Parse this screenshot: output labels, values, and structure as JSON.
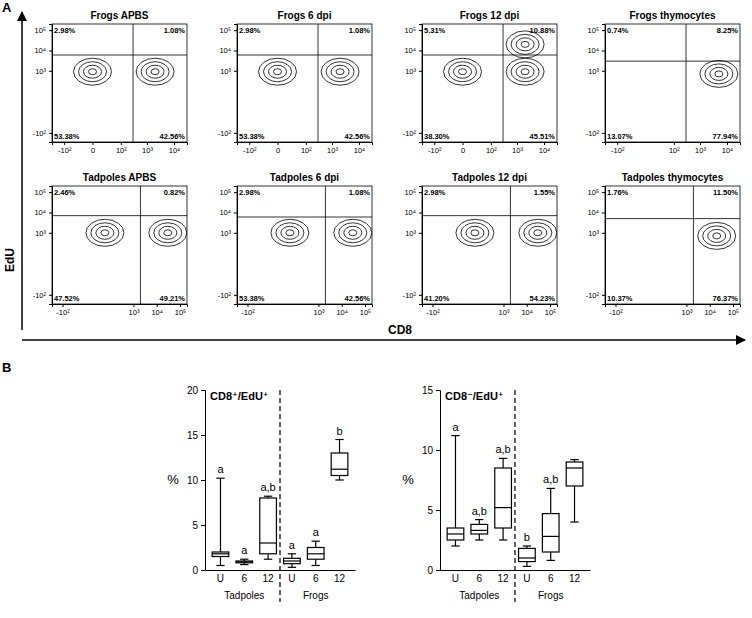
{
  "figure": {
    "x_label": "CD8",
    "y_label": "EdU",
    "panel_labels": [
      "A",
      "B"
    ]
  },
  "chart_data": [
    {
      "type": "flow",
      "title": "Frogs APBS",
      "log": true,
      "xlim": [
        -300,
        30000
      ],
      "ylim": [
        -300,
        200000
      ],
      "xticks": [
        {
          "value": -100,
          "label": "-10²"
        },
        0,
        {
          "value": 100,
          "label": "10²"
        },
        {
          "value": 1000,
          "label": "10³"
        },
        {
          "value": 10000,
          "label": "10⁴"
        }
      ],
      "yticks": [
        {
          "value": -100,
          "label": "-10²"
        },
        {
          "value": 1000,
          "label": "10³"
        },
        {
          "value": 10000,
          "label": "10⁴"
        },
        {
          "value": 100000,
          "label": "10⁵"
        }
      ],
      "gate": {
        "x": 300,
        "y": 6000
      },
      "quadrants": {
        "values": [
          2.98,
          1.08,
          53.38,
          42.56
        ],
        "value_labels": [
          "2.98%",
          "1.08%",
          "53.38%",
          "42.56%"
        ]
      },
      "clusters": [
        {
          "x": 0,
          "y": 900
        },
        {
          "x": 2000,
          "y": 900
        }
      ]
    },
    {
      "type": "flow",
      "title": "Frogs 6 dpi",
      "log": true,
      "xlim": [
        -300,
        30000
      ],
      "ylim": [
        -300,
        200000
      ],
      "xticks": [
        {
          "value": -100,
          "label": "-10²"
        },
        0,
        {
          "value": 100,
          "label": "10²"
        },
        {
          "value": 1000,
          "label": "10³"
        },
        {
          "value": 10000,
          "label": "10⁴"
        }
      ],
      "yticks": [
        {
          "value": -100,
          "label": "-10²"
        },
        {
          "value": 1000,
          "label": "10³"
        },
        {
          "value": 10000,
          "label": "10⁴"
        },
        {
          "value": 100000,
          "label": "10⁵"
        }
      ],
      "gate": {
        "x": 300,
        "y": 6000
      },
      "quadrants": {
        "values": [
          2.98,
          1.08,
          53.38,
          42.56
        ],
        "value_labels": [
          "2.98%",
          "1.08%",
          "53.38%",
          "42.56%"
        ]
      },
      "clusters": [
        {
          "x": 0,
          "y": 900
        },
        {
          "x": 2000,
          "y": 900
        }
      ]
    },
    {
      "type": "flow",
      "title": "Frogs 12 dpi",
      "log": true,
      "xlim": [
        -300,
        30000
      ],
      "ylim": [
        -300,
        200000
      ],
      "xticks": [
        {
          "value": -100,
          "label": "-10²"
        },
        0,
        {
          "value": 100,
          "label": "10²"
        },
        {
          "value": 1000,
          "label": "10³"
        },
        {
          "value": 10000,
          "label": "10⁴"
        }
      ],
      "yticks": [
        {
          "value": -100,
          "label": "-10²"
        },
        {
          "value": 1000,
          "label": "10³"
        },
        {
          "value": 10000,
          "label": "10⁴"
        },
        {
          "value": 100000,
          "label": "10⁵"
        }
      ],
      "gate": {
        "x": 300,
        "y": 6000
      },
      "quadrants": {
        "values": [
          5.31,
          10.88,
          38.3,
          45.51
        ],
        "value_labels": [
          "5.31%",
          "10.88%",
          "38.30%",
          "45.51%"
        ]
      },
      "clusters": [
        {
          "x": 0,
          "y": 900
        },
        {
          "x": 2000,
          "y": 900
        },
        {
          "x": 2000,
          "y": 20000
        }
      ]
    },
    {
      "type": "flow",
      "title": "Frogs thymocytes",
      "log": true,
      "xlim": [
        -300,
        30000
      ],
      "ylim": [
        -300,
        200000
      ],
      "xticks": [
        {
          "value": -100,
          "label": "-10²"
        },
        {
          "value": 100,
          "label": "10²"
        },
        {
          "value": 1000,
          "label": "10³"
        },
        {
          "value": 10000,
          "label": "10⁴"
        }
      ],
      "yticks": [
        {
          "value": -100,
          "label": "-10²"
        },
        {
          "value": 1000,
          "label": "10³"
        },
        {
          "value": 10000,
          "label": "10⁴"
        },
        {
          "value": 100000,
          "label": "10⁵"
        }
      ],
      "gate": {
        "x": 300,
        "y": 3000
      },
      "quadrants": {
        "values": [
          0.74,
          8.25,
          13.07,
          77.94
        ],
        "value_labels": [
          "0.74%",
          "8.25%",
          "13.07%",
          "77.94%"
        ]
      },
      "clusters": [
        {
          "x": 5000,
          "y": 700
        }
      ]
    },
    {
      "type": "flow",
      "title": "Tadpoles APBS",
      "log": true,
      "xlim": [
        -300,
        200000
      ],
      "ylim": [
        -300,
        200000
      ],
      "xticks": [
        {
          "value": -100,
          "label": "-10²"
        },
        {
          "value": 1000,
          "label": "10³"
        },
        {
          "value": 10000,
          "label": "10⁴"
        },
        {
          "value": 100000,
          "label": "10⁵"
        }
      ],
      "yticks": [
        {
          "value": -100,
          "label": "-10²"
        },
        {
          "value": 1000,
          "label": "10³"
        },
        {
          "value": 10000,
          "label": "10⁴"
        },
        {
          "value": 100000,
          "label": "10⁵"
        }
      ],
      "gate": {
        "x": 2000,
        "y": 7000
      },
      "quadrants": {
        "values": [
          2.46,
          0.82,
          47.52,
          49.21
        ],
        "value_labels": [
          "2.46%",
          "0.82%",
          "47.52%",
          "49.21%"
        ]
      },
      "clusters": [
        {
          "x": 50,
          "y": 1000
        },
        {
          "x": 30000,
          "y": 1000
        }
      ]
    },
    {
      "type": "flow",
      "title": "Tadpoles 6 dpi",
      "log": true,
      "xlim": [
        -300,
        200000
      ],
      "ylim": [
        -300,
        200000
      ],
      "xticks": [
        {
          "value": -100,
          "label": "-10²"
        },
        {
          "value": 1000,
          "label": "10³"
        },
        {
          "value": 10000,
          "label": "10⁴"
        },
        {
          "value": 100000,
          "label": "10⁵"
        }
      ],
      "yticks": [
        {
          "value": -100,
          "label": "-10²"
        },
        {
          "value": 1000,
          "label": "10³"
        },
        {
          "value": 10000,
          "label": "10⁴"
        },
        {
          "value": 100000,
          "label": "10⁵"
        }
      ],
      "gate": {
        "x": 2000,
        "y": 6000
      },
      "quadrants": {
        "values": [
          2.98,
          1.08,
          53.38,
          42.56
        ],
        "value_labels": [
          "2.98%",
          "1.08%",
          "53.38%",
          "42.56%"
        ]
      },
      "clusters": [
        {
          "x": 50,
          "y": 1000
        },
        {
          "x": 30000,
          "y": 1000
        }
      ]
    },
    {
      "type": "flow",
      "title": "Tadpoles 12 dpi",
      "log": true,
      "xlim": [
        -300,
        200000
      ],
      "ylim": [
        -300,
        200000
      ],
      "xticks": [
        {
          "value": -100,
          "label": "-10²"
        },
        {
          "value": 1000,
          "label": "10³"
        },
        {
          "value": 10000,
          "label": "10⁴"
        },
        {
          "value": 100000,
          "label": "10⁵"
        }
      ],
      "yticks": [
        {
          "value": -100,
          "label": "-10²"
        },
        {
          "value": 1000,
          "label": "10³"
        },
        {
          "value": 10000,
          "label": "10⁴"
        },
        {
          "value": 100000,
          "label": "10⁵"
        }
      ],
      "gate": {
        "x": 2000,
        "y": 7000
      },
      "quadrants": {
        "values": [
          2.98,
          1.55,
          41.2,
          54.23
        ],
        "value_labels": [
          "2.98%",
          "1.55%",
          "41.20%",
          "54.23%"
        ]
      },
      "clusters": [
        {
          "x": 50,
          "y": 1000
        },
        {
          "x": 30000,
          "y": 1000
        }
      ]
    },
    {
      "type": "flow",
      "title": "Tadpoles thymocytes",
      "log": true,
      "xlim": [
        -300,
        200000
      ],
      "ylim": [
        -300,
        200000
      ],
      "xticks": [
        {
          "value": -100,
          "label": "-10²"
        },
        {
          "value": 1000,
          "label": "10³"
        },
        {
          "value": 10000,
          "label": "10⁴"
        },
        {
          "value": 100000,
          "label": "10⁵"
        }
      ],
      "yticks": [
        {
          "value": -100,
          "label": "-10²"
        },
        {
          "value": 1000,
          "label": "10³"
        },
        {
          "value": 10000,
          "label": "10⁴"
        },
        {
          "value": 100000,
          "label": "10⁵"
        }
      ],
      "gate": {
        "x": 2000,
        "y": 5000
      },
      "quadrants": {
        "values": [
          1.76,
          11.5,
          10.37,
          76.37
        ],
        "value_labels": [
          "1.76%",
          "11.50%",
          "10.37%",
          "76.37%"
        ]
      },
      "clusters": [
        {
          "x": 20000,
          "y": 700
        }
      ]
    },
    {
      "type": "box",
      "title": "CD8⁺/EdU⁺",
      "y_label": "%",
      "categories": [
        "U",
        "6",
        "12",
        "U",
        "6",
        "12"
      ],
      "groups": [
        "Tadpoles",
        "Frogs"
      ],
      "ylim": [
        0,
        20
      ],
      "yticks": [
        0,
        5,
        10,
        15,
        20
      ],
      "min": [
        0.5,
        0.6,
        1.2,
        0.3,
        0.5,
        10.0
      ],
      "q1": [
        1.5,
        0.8,
        1.8,
        0.7,
        1.2,
        10.5
      ],
      "median": [
        1.8,
        0.9,
        3.0,
        1.0,
        1.8,
        11.2
      ],
      "q3": [
        2.0,
        1.0,
        8.0,
        1.3,
        2.5,
        13.0
      ],
      "max": [
        10.2,
        1.2,
        8.2,
        1.8,
        3.2,
        14.5
      ],
      "annotations": [
        "a",
        "a",
        "a,b",
        "a",
        "a",
        "b"
      ]
    },
    {
      "type": "box",
      "title": "CD8⁻/EdU⁺",
      "y_label": "%",
      "categories": [
        "U",
        "6",
        "12",
        "U",
        "6",
        "12"
      ],
      "groups": [
        "Tadpoles",
        "Frogs"
      ],
      "ylim": [
        0,
        15
      ],
      "yticks": [
        0,
        5,
        10,
        15
      ],
      "min": [
        2.0,
        2.5,
        2.5,
        0.3,
        0.8,
        4.0
      ],
      "q1": [
        2.5,
        3.0,
        3.5,
        0.7,
        1.5,
        7.0
      ],
      "median": [
        3.0,
        3.3,
        5.2,
        1.0,
        2.8,
        8.5
      ],
      "q3": [
        3.5,
        3.8,
        8.5,
        1.8,
        4.7,
        9.0
      ],
      "max": [
        11.2,
        4.2,
        9.3,
        2.0,
        6.8,
        9.2
      ],
      "annotations": [
        "a",
        "a,b",
        "a,b",
        "b",
        "a,b",
        null
      ]
    }
  ]
}
